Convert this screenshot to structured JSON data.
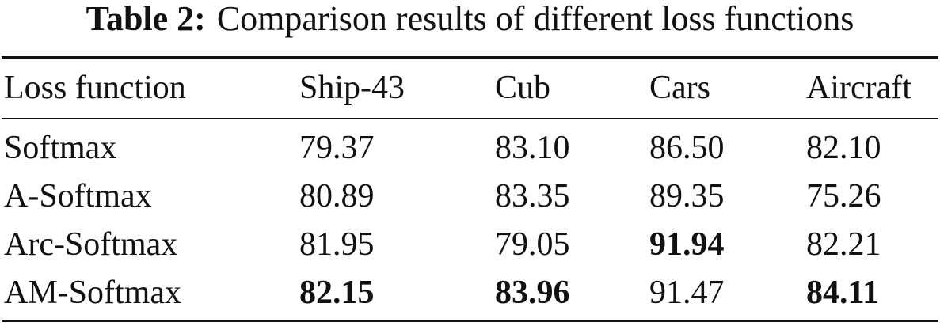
{
  "caption": {
    "label": "Table 2:",
    "text": "Comparison results of different loss functions"
  },
  "table": {
    "header": [
      "Loss function",
      "Ship-43",
      "Cub",
      "Cars",
      "Aircraft"
    ],
    "rows": [
      [
        "Softmax",
        "79.37",
        "83.10",
        "86.50",
        "82.10"
      ],
      [
        "A-Softmax",
        "80.89",
        "83.35",
        "89.35",
        "75.26"
      ],
      [
        "Arc-Softmax",
        "81.95",
        "79.05",
        "91.94",
        "82.21"
      ],
      [
        "AM-Softmax",
        "82.15",
        "83.96",
        "91.47",
        "84.11"
      ]
    ],
    "bold": [
      [
        2,
        3
      ],
      [
        3,
        1
      ],
      [
        3,
        2
      ],
      [
        3,
        4
      ]
    ]
  }
}
